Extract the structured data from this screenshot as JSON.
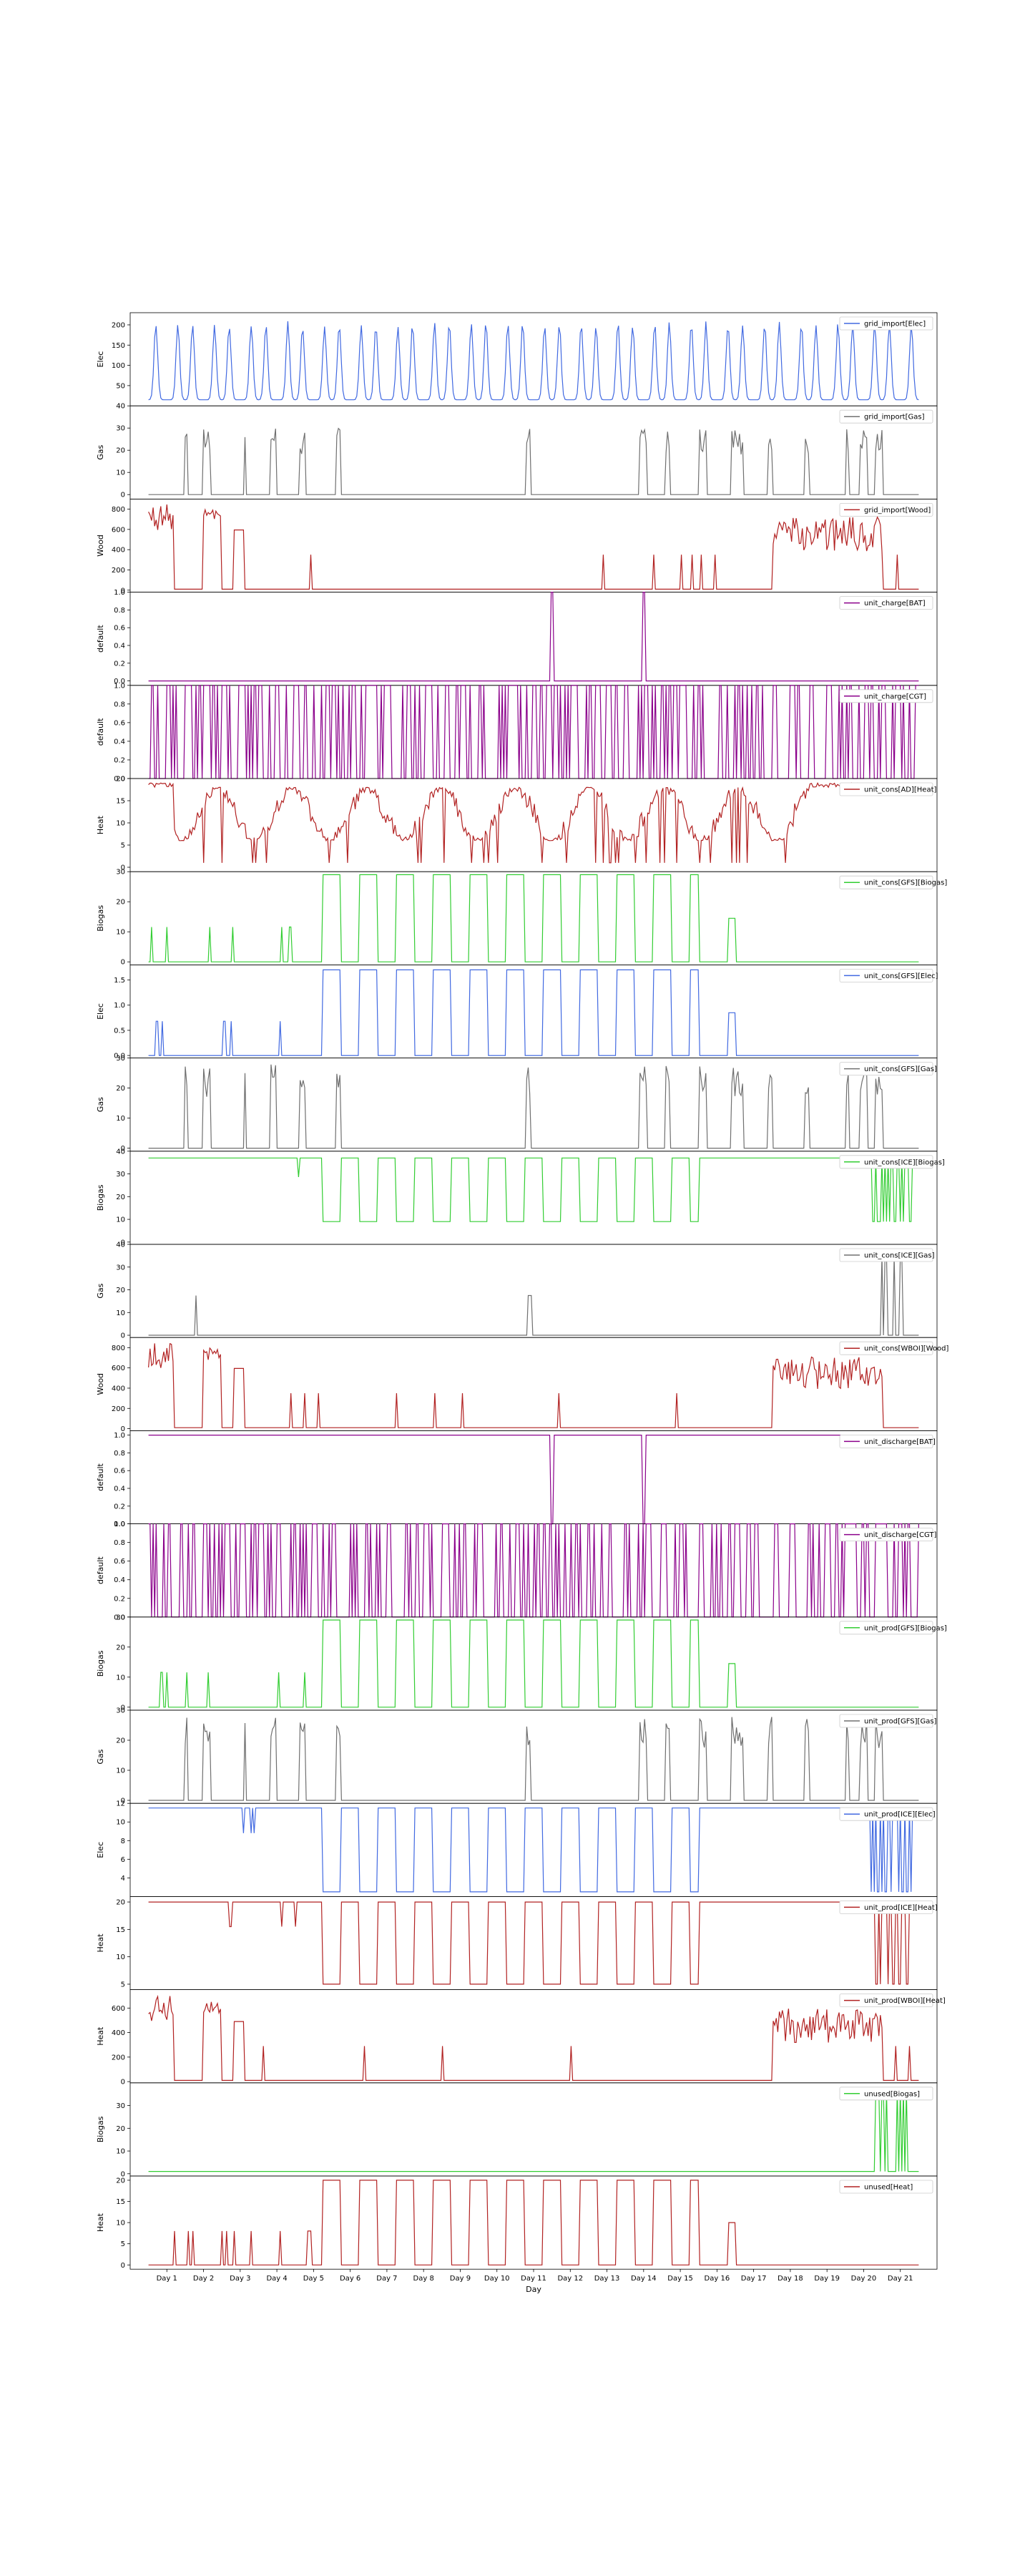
{
  "chart_data": {
    "type": "line",
    "xlabel": "Day",
    "x_tick_labels": [
      "Day 1",
      "Day 2",
      "Day 3",
      "Day 4",
      "Day 5",
      "Day 6",
      "Day 7",
      "Day 8",
      "Day 9",
      "Day 10",
      "Day 11",
      "Day 12",
      "Day 13",
      "Day 14",
      "Day 15",
      "Day 16",
      "Day 17",
      "Day 18",
      "Day 19",
      "Day 20",
      "Day 21"
    ],
    "xlim": [
      0,
      22
    ],
    "legend_position": "upper right",
    "grid": false,
    "panels": [
      {
        "name": "grid_import[Elec]",
        "ylabel": "Elec",
        "color": "#4169e1",
        "ylim": [
          0,
          230
        ],
        "yticks": [
          "50",
          "100",
          "150",
          "200"
        ],
        "pattern": "daily-twin-peaks",
        "base": 15,
        "peak": 210
      },
      {
        "name": "grid_import[Gas]",
        "ylabel": "Gas",
        "color": "#707070",
        "ylim": [
          -2,
          40
        ],
        "yticks": [
          "0",
          "10",
          "20",
          "30",
          "40"
        ],
        "pattern": "intermittent-blocks",
        "base": 0,
        "peak": 30
      },
      {
        "name": "grid_import[Wood]",
        "ylabel": "Wood",
        "color": "#b22222",
        "ylim": [
          -20,
          900
        ],
        "yticks": [
          "0",
          "200",
          "400",
          "600",
          "800"
        ],
        "pattern": "edge-heavy",
        "base": 10,
        "peak": 850
      },
      {
        "name": "unit_charge[BAT]",
        "ylabel": "default",
        "color": "#8b008b",
        "ylim": [
          -0.05,
          1.0
        ],
        "yticks": [
          "0.0",
          "0.2",
          "0.4",
          "0.6",
          "0.8",
          "1.0"
        ],
        "pattern": "two-spikes-up",
        "base": 0,
        "peak": 1
      },
      {
        "name": "unit_charge[CGT]",
        "ylabel": "default",
        "color": "#8b008b",
        "ylim": [
          0,
          1.0
        ],
        "yticks": [
          "0.0",
          "0.2",
          "0.4",
          "0.6",
          "0.8",
          "1.0"
        ],
        "pattern": "binary-switching",
        "base": 0,
        "peak": 1
      },
      {
        "name": "unit_cons[AD][Heat]",
        "ylabel": "Heat",
        "color": "#b22222",
        "ylim": [
          -1,
          20
        ],
        "yticks": [
          "0",
          "5",
          "10",
          "15",
          "20"
        ],
        "pattern": "fluctuating-high",
        "base": 1,
        "peak": 19
      },
      {
        "name": "unit_cons[GFS][Biogas]",
        "ylabel": "Biogas",
        "color": "#32cd32",
        "ylim": [
          -1,
          30
        ],
        "yticks": [
          "0",
          "10",
          "20",
          "30"
        ],
        "pattern": "square-blocks",
        "base": 0,
        "peak": 29
      },
      {
        "name": "unit_cons[GFS][Elec]",
        "ylabel": "Elec",
        "color": "#4169e1",
        "ylim": [
          -0.05,
          1.8
        ],
        "yticks": [
          "0.0",
          "0.5",
          "1.0",
          "1.5"
        ],
        "pattern": "square-blocks",
        "base": 0,
        "peak": 1.7
      },
      {
        "name": "unit_cons[GFS][Gas]",
        "ylabel": "Gas",
        "color": "#707070",
        "ylim": [
          -1,
          30
        ],
        "yticks": [
          "0",
          "10",
          "20",
          "30"
        ],
        "pattern": "intermittent-blocks",
        "base": 0,
        "peak": 28
      },
      {
        "name": "unit_cons[ICE][Biogas]",
        "ylabel": "Biogas",
        "color": "#32cd32",
        "ylim": [
          -1,
          40
        ],
        "yticks": [
          "0",
          "10",
          "20",
          "30",
          "40"
        ],
        "pattern": "inverted-blocks",
        "base": 37,
        "peak": 9
      },
      {
        "name": "unit_cons[ICE][Gas]",
        "ylabel": "Gas",
        "color": "#707070",
        "ylim": [
          -1,
          40
        ],
        "yticks": [
          "0",
          "10",
          "20",
          "30",
          "40"
        ],
        "pattern": "late-spikes",
        "base": 0,
        "peak": 35
      },
      {
        "name": "unit_cons[WBOI][Wood]",
        "ylabel": "Wood",
        "color": "#b22222",
        "ylim": [
          -20,
          900
        ],
        "yticks": [
          "0",
          "200",
          "400",
          "600",
          "800"
        ],
        "pattern": "edge-heavy",
        "base": 10,
        "peak": 850
      },
      {
        "name": "unit_discharge[BAT]",
        "ylabel": "default",
        "color": "#8b008b",
        "ylim": [
          0,
          1.05
        ],
        "yticks": [
          "0.0",
          "0.2",
          "0.4",
          "0.6",
          "0.8",
          "1.0"
        ],
        "pattern": "two-spikes-down",
        "base": 1,
        "peak": 0
      },
      {
        "name": "unit_discharge[CGT]",
        "ylabel": "default",
        "color": "#8b008b",
        "ylim": [
          0,
          1.0
        ],
        "yticks": [
          "0.0",
          "0.2",
          "0.4",
          "0.6",
          "0.8",
          "1.0"
        ],
        "pattern": "binary-switching",
        "base": 0,
        "peak": 1
      },
      {
        "name": "unit_prod[GFS][Biogas]",
        "ylabel": "Biogas",
        "color": "#32cd32",
        "ylim": [
          -1,
          30
        ],
        "yticks": [
          "0",
          "10",
          "20",
          "30"
        ],
        "pattern": "square-blocks",
        "base": 0,
        "peak": 29
      },
      {
        "name": "unit_prod[GFS][Gas]",
        "ylabel": "Gas",
        "color": "#707070",
        "ylim": [
          -1,
          30
        ],
        "yticks": [
          "0",
          "10",
          "20",
          "30"
        ],
        "pattern": "intermittent-blocks",
        "base": 0,
        "peak": 28
      },
      {
        "name": "unit_prod[ICE][Elec]",
        "ylabel": "Elec",
        "color": "#4169e1",
        "ylim": [
          2,
          12
        ],
        "yticks": [
          "4",
          "6",
          "8",
          "10",
          "12"
        ],
        "pattern": "inverted-blocks",
        "base": 11.5,
        "peak": 2.5
      },
      {
        "name": "unit_prod[ICE][Heat]",
        "ylabel": "Heat",
        "color": "#b22222",
        "ylim": [
          4,
          21
        ],
        "yticks": [
          "5",
          "10",
          "15",
          "20"
        ],
        "pattern": "inverted-blocks",
        "base": 20,
        "peak": 5
      },
      {
        "name": "unit_prod[WBOI][Heat]",
        "ylabel": "Heat",
        "color": "#b22222",
        "ylim": [
          -10,
          750
        ],
        "yticks": [
          "0",
          "200",
          "400",
          "600"
        ],
        "pattern": "edge-heavy",
        "base": 10,
        "peak": 700
      },
      {
        "name": "unused[Biogas]",
        "ylabel": "Biogas",
        "color": "#32cd32",
        "ylim": [
          -1,
          40
        ],
        "yticks": [
          "0",
          "10",
          "20",
          "30"
        ],
        "pattern": "late-spikes-only",
        "base": 1,
        "peak": 37
      },
      {
        "name": "unused[Heat]",
        "ylabel": "Heat",
        "color": "#b22222",
        "ylim": [
          -1,
          21
        ],
        "yticks": [
          "0",
          "5",
          "10",
          "15",
          "20"
        ],
        "pattern": "square-blocks",
        "base": 0,
        "peak": 20
      }
    ]
  }
}
